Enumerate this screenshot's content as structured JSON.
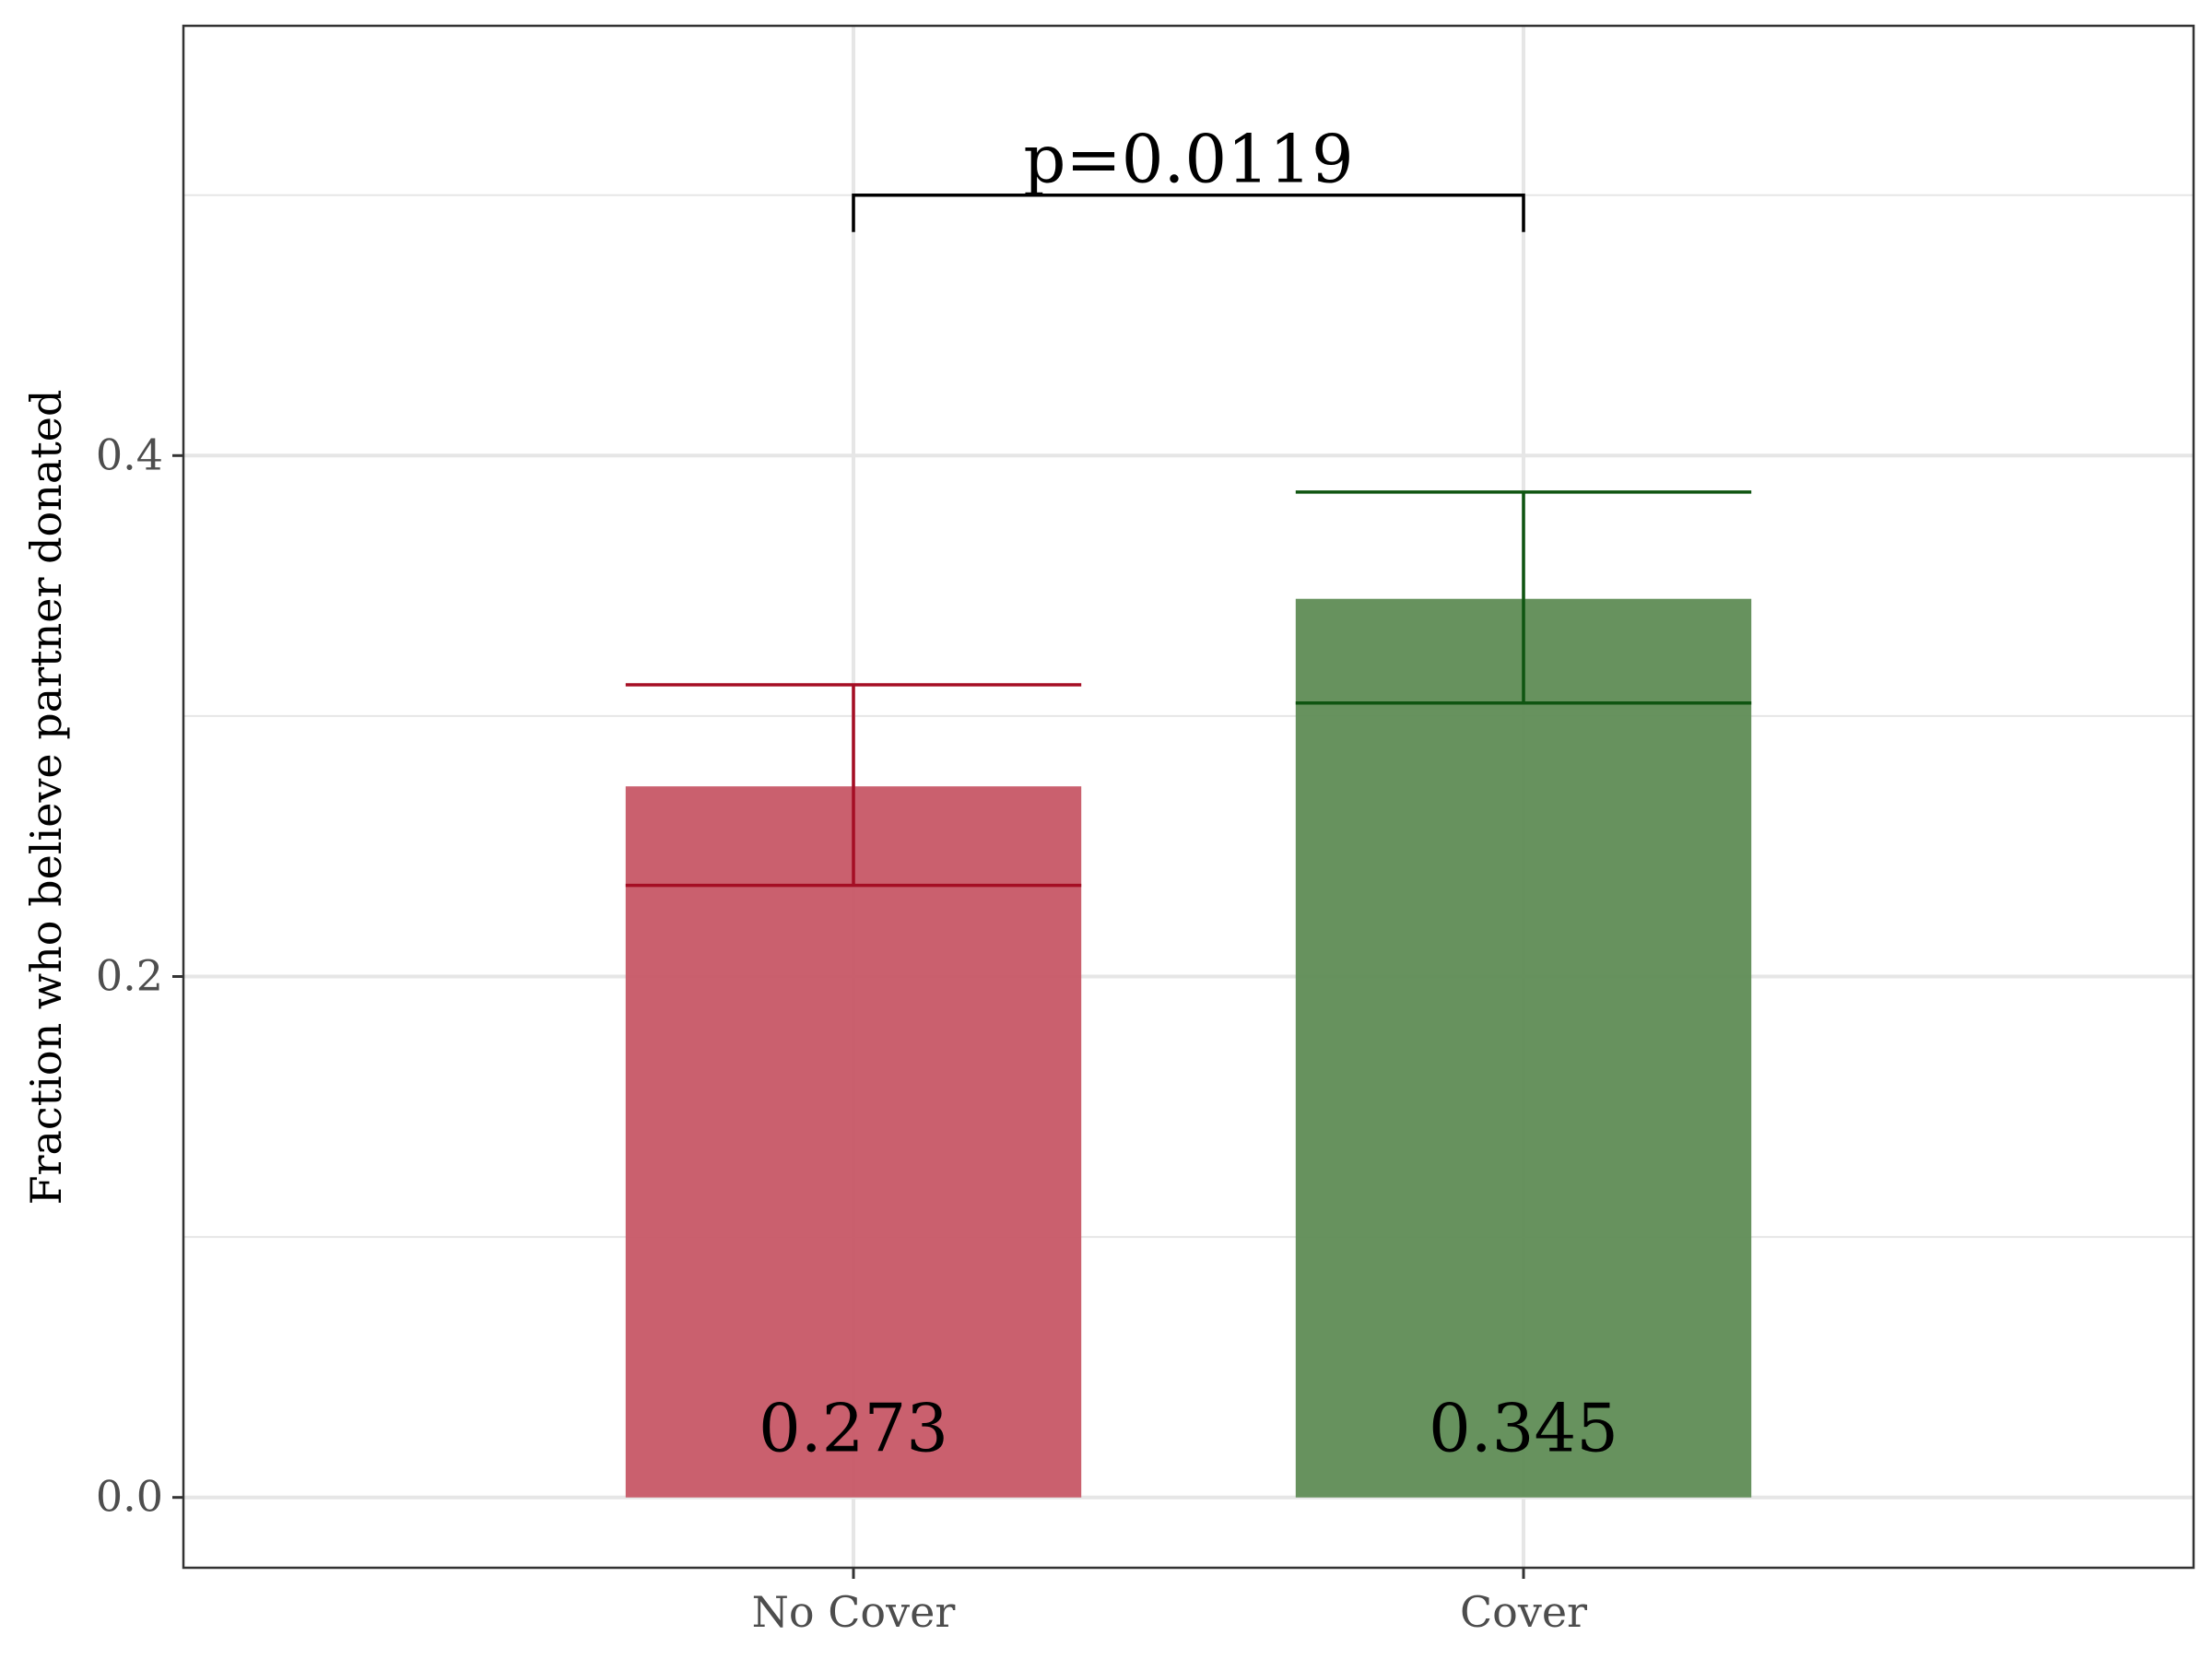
{
  "chart_data": {
    "type": "bar",
    "title": "",
    "xlabel": "",
    "ylabel": "Fraction who believe partner donated",
    "categories": [
      "No Cover",
      "Cover"
    ],
    "values": [
      0.273,
      0.345
    ],
    "value_labels": [
      "0.273",
      "0.345"
    ],
    "error_bars": [
      {
        "lower": 0.235,
        "upper": 0.312
      },
      {
        "lower": 0.305,
        "upper": 0.386
      }
    ],
    "ylim": [
      -0.027,
      0.565
    ],
    "yticks": [
      0.0,
      0.2,
      0.4
    ],
    "ytick_labels": [
      "0.0",
      "0.2",
      "0.4"
    ],
    "grid": true,
    "legend": "none",
    "significance": {
      "label": "p=0.0119",
      "between": [
        0,
        1
      ],
      "y": 0.5
    },
    "colors": {
      "bars": [
        "#c85a68",
        "#618e57"
      ],
      "error_bars": [
        "#a50e24",
        "#0f5511"
      ],
      "grid": "#e6e6e6",
      "frame": "#333333"
    }
  }
}
